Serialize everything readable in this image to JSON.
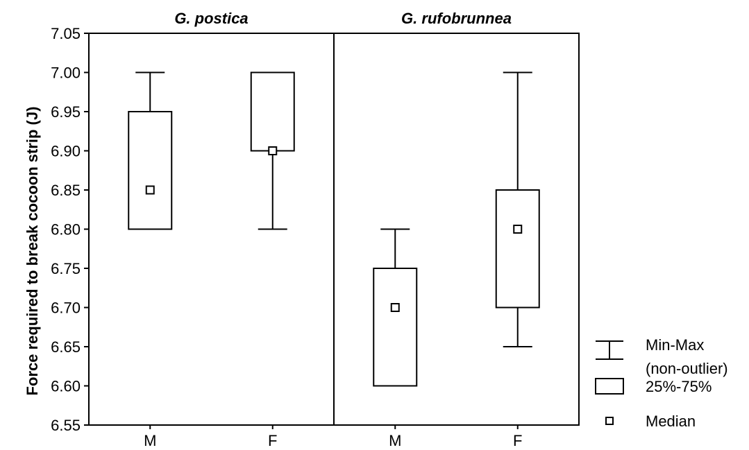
{
  "chart_data": {
    "type": "box",
    "ylabel": "Force required to break cocoon strip (J)",
    "ylim": [
      6.55,
      7.05
    ],
    "yticks": [
      6.55,
      6.6,
      6.65,
      6.7,
      6.75,
      6.8,
      6.85,
      6.9,
      6.95,
      7.0,
      7.05
    ],
    "panels": [
      {
        "title": "G. postica",
        "groups": [
          {
            "category": "M",
            "min": 6.8,
            "q1": 6.8,
            "median": 6.85,
            "q3": 6.95,
            "max": 7.0
          },
          {
            "category": "F",
            "min": 6.8,
            "q1": 6.9,
            "median": 6.9,
            "q3": 7.0,
            "max": 7.0
          }
        ]
      },
      {
        "title": "G. rufobrunnea",
        "groups": [
          {
            "category": "M",
            "min": 6.6,
            "q1": 6.6,
            "median": 6.7,
            "q3": 6.75,
            "max": 6.8
          },
          {
            "category": "F",
            "min": 6.65,
            "q1": 6.7,
            "median": 6.8,
            "q3": 6.85,
            "max": 7.0
          }
        ]
      }
    ],
    "legend": {
      "position": "bottom-right",
      "items": [
        {
          "symbol": "whisker",
          "lines": [
            "Min-Max",
            "(non-outlier)"
          ]
        },
        {
          "symbol": "box",
          "lines": [
            "25%-75%"
          ]
        },
        {
          "symbol": "median",
          "lines": [
            "Median"
          ]
        }
      ]
    }
  }
}
